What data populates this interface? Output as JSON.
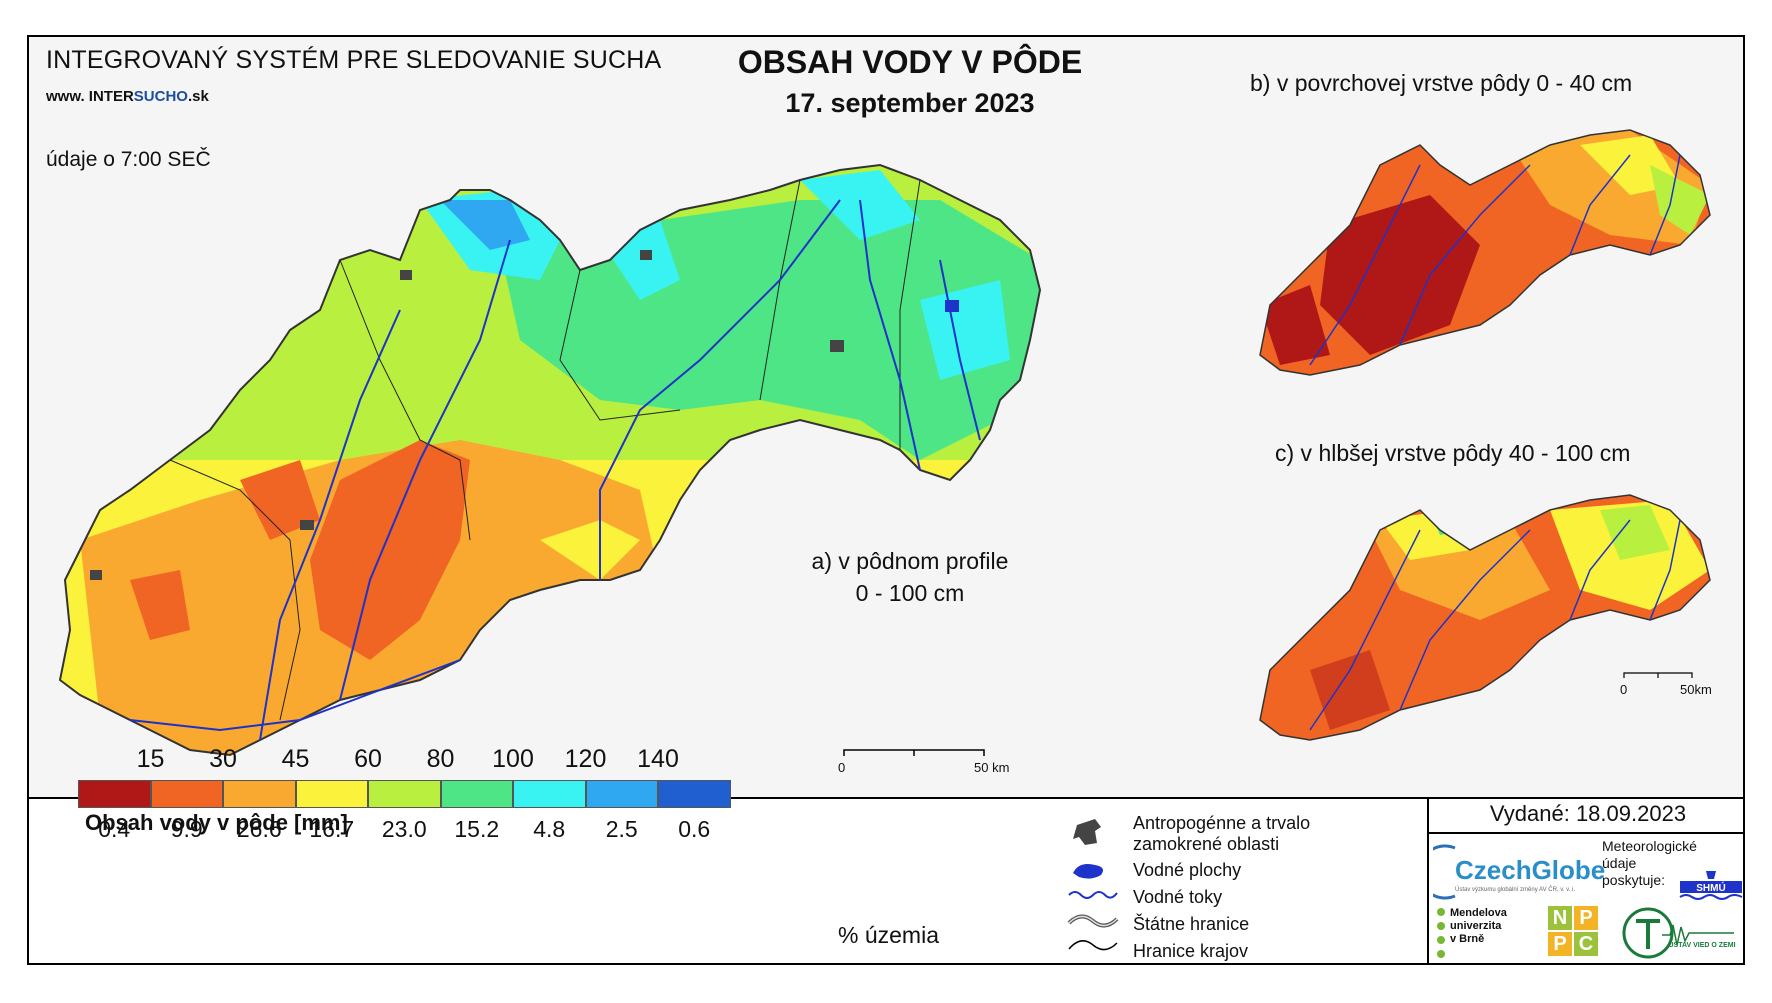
{
  "header": {
    "system_title": "INTEGROVANÝ SYSTÉM PRE SLEDOVANIE SUCHA",
    "url_prefix": "www. INTER",
    "url_highlight": "SUCHO",
    "url_suffix": ".sk",
    "data_time": "údaje o 7:00 SEČ",
    "main_title": "OBSAH VODY V PÔDE",
    "date": "17. september 2023"
  },
  "maps": {
    "a_label_line1": "a) v pôdnom profile",
    "a_label_line2": "0 - 100 cm",
    "b_label": "b) v povrchovej vrstve pôdy 0 - 40 cm",
    "c_label": "c) v hlbšej vrstve pôdy 40 - 100 cm",
    "scale_main": {
      "start": "0",
      "end": "50 km"
    },
    "scale_small": {
      "start": "0",
      "end": "50km"
    }
  },
  "legend": {
    "title": "Obsah vody v pôde  [mm]",
    "thresholds": [
      "15",
      "30",
      "45",
      "60",
      "80",
      "100",
      "120",
      "140"
    ],
    "classes": [
      {
        "color": "#b01818",
        "percent": "0.4"
      },
      {
        "color": "#f06424",
        "percent": "9.9"
      },
      {
        "color": "#f9a930",
        "percent": "26.6"
      },
      {
        "color": "#fbf23c",
        "percent": "16.7"
      },
      {
        "color": "#b9ef3e",
        "percent": "23.0"
      },
      {
        "color": "#4ee586",
        "percent": "15.2"
      },
      {
        "color": "#39f3f3",
        "percent": "4.8"
      },
      {
        "color": "#2fa8f1",
        "percent": "2.5"
      },
      {
        "color": "#1f5fcf",
        "percent": "0.6"
      }
    ],
    "percent_unit": "% územia",
    "symbols": [
      {
        "icon": "anthropogenic-area-icon",
        "label_line1": "Antropogénne a trvalo",
        "label_line2": "zamokrené oblasti"
      },
      {
        "icon": "water-body-icon",
        "label_line1": "Vodné plochy",
        "label_line2": ""
      },
      {
        "icon": "river-icon",
        "label_line1": "Vodné toky",
        "label_line2": ""
      },
      {
        "icon": "state-border-icon",
        "label_line1": "Štátne hranice",
        "label_line2": ""
      },
      {
        "icon": "region-border-icon",
        "label_line1": "Hranice krajov",
        "label_line2": ""
      }
    ]
  },
  "footer": {
    "issued": "Vydané: 18.09.2023",
    "czechglobe": "CzechGlobe",
    "czechglobe_sub": "Ústav výzkumu globální změny AV ČR, v. v. i.",
    "meteo_line1": "Meteorologické",
    "meteo_line2": "údaje",
    "meteo_line3": "poskytuje:",
    "shmu": "SHMÚ",
    "mendel_line1": "Mendelova",
    "mendel_line2": "univerzita",
    "mendel_line3": "v Brně",
    "nppc": [
      "N",
      "P",
      "P",
      "C"
    ],
    "uvz": "ÚSTAV VIED O ZEMI"
  }
}
